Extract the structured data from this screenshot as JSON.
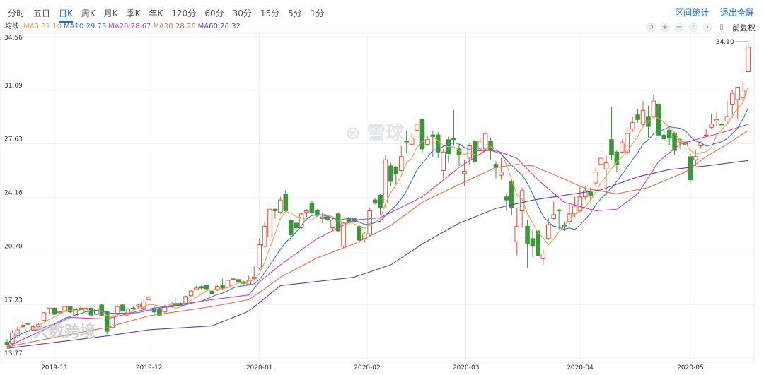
{
  "tabs": [
    {
      "label": "分时"
    },
    {
      "label": "五日"
    },
    {
      "label": "日K",
      "active": true
    },
    {
      "label": "周K"
    },
    {
      "label": "月K"
    },
    {
      "label": "季K"
    },
    {
      "label": "年K"
    },
    {
      "label": "120分"
    },
    {
      "label": "60分"
    },
    {
      "label": "30分"
    },
    {
      "label": "15分"
    },
    {
      "label": "5分"
    },
    {
      "label": "1分"
    }
  ],
  "links": {
    "range_stats": "区间统计",
    "exit_fullscreen": "退出全屏"
  },
  "legend": {
    "title": "均线",
    "items": [
      {
        "label": "MA5:31.10",
        "color": "#f0a04b"
      },
      {
        "label": "MA10:29.73",
        "color": "#3a7bd5"
      },
      {
        "label": "MA20:28.67",
        "color": "#d23fc0"
      },
      {
        "label": "MA30:28.26",
        "color": "#ec6b4a"
      },
      {
        "label": "MA60:26.32",
        "color": "#6a3ea1"
      }
    ]
  },
  "tools": {
    "icons": [
      "undo-icon",
      "zoom-in-icon",
      "zoom-out-icon",
      "chevron-left-icon",
      "chevron-right-icon",
      "candlestick-icon"
    ],
    "adjust_label": "前复权"
  },
  "watermarks": {
    "center": "雪球",
    "bottom_left": "大数跨境"
  },
  "colors": {
    "up": "#e0533f",
    "down": "#3d963d",
    "active_tab": "#1f6fd1"
  },
  "chart_data": {
    "type": "candlestick",
    "ylim": [
      13.77,
      34.56
    ],
    "y_ticks": [
      "34.56",
      "31.09",
      "27.63",
      "24.16",
      "20.70",
      "17.23",
      "13.77"
    ],
    "x_ticks": [
      {
        "label": "2019-11",
        "candle": 9
      },
      {
        "label": "2019-12",
        "candle": 27
      },
      {
        "label": "2020-01",
        "candle": 48
      },
      {
        "label": "2020-02",
        "candle": 68.5
      },
      {
        "label": "2020-03",
        "candle": 87.3
      },
      {
        "label": "2020-04",
        "candle": 109
      },
      {
        "label": "2020-05",
        "candle": 130
      }
    ],
    "max_label": "34.10",
    "ohlc": [
      [
        14.8,
        15.0,
        14.5,
        14.65
      ],
      [
        14.7,
        15.6,
        14.6,
        15.4
      ],
      [
        15.2,
        15.8,
        15.1,
        15.6
      ],
      [
        15.8,
        16.1,
        15.7,
        15.9
      ],
      [
        16.0,
        16.05,
        15.9,
        15.98
      ],
      [
        15.6,
        15.9,
        15.5,
        15.8
      ],
      [
        15.8,
        16.0,
        15.75,
        15.95
      ],
      [
        16.2,
        16.75,
        16.15,
        16.7
      ],
      [
        16.95,
        17.0,
        16.6,
        17.0
      ],
      [
        17.0,
        17.05,
        16.6,
        16.6
      ],
      [
        16.7,
        16.8,
        16.65,
        16.75
      ],
      [
        16.8,
        17.1,
        16.75,
        17.1
      ],
      [
        17.1,
        17.15,
        16.7,
        16.75
      ],
      [
        16.5,
        16.95,
        16.45,
        16.9
      ],
      [
        17.0,
        17.05,
        16.85,
        16.9
      ],
      [
        16.8,
        17.2,
        16.75,
        17.0
      ],
      [
        17.0,
        17.05,
        16.4,
        16.55
      ],
      [
        16.6,
        16.95,
        16.55,
        16.95
      ],
      [
        17.2,
        17.25,
        16.5,
        16.55
      ],
      [
        16.8,
        16.85,
        15.3,
        15.5
      ],
      [
        15.75,
        16.6,
        15.7,
        16.5
      ],
      [
        16.6,
        17.2,
        16.5,
        17.1
      ],
      [
        17.2,
        17.25,
        16.8,
        16.8
      ],
      [
        16.6,
        17.0,
        16.5,
        16.95
      ],
      [
        17.0,
        17.1,
        16.9,
        16.97
      ],
      [
        17.1,
        17.3,
        17.0,
        17.2
      ],
      [
        17.0,
        17.55,
        16.7,
        17.4
      ],
      [
        17.55,
        17.8,
        17.5,
        17.7
      ],
      [
        17.0,
        17.1,
        16.7,
        16.75
      ],
      [
        16.9,
        16.95,
        16.5,
        16.55
      ],
      [
        16.75,
        17.2,
        16.7,
        17.1
      ],
      [
        17.25,
        17.45,
        17.2,
        17.4
      ],
      [
        17.3,
        17.7,
        17.1,
        17.15
      ],
      [
        17.3,
        17.4,
        17.1,
        17.15
      ],
      [
        17.3,
        17.8,
        17.25,
        17.75
      ],
      [
        17.8,
        18.15,
        17.75,
        18.1
      ],
      [
        18.2,
        18.45,
        18.15,
        18.3
      ],
      [
        18.4,
        18.5,
        18.2,
        18.3
      ],
      [
        18.45,
        18.5,
        18.1,
        18.25
      ],
      [
        18.1,
        18.15,
        17.9,
        17.95
      ],
      [
        18.2,
        18.5,
        18.1,
        18.4
      ],
      [
        18.45,
        18.9,
        18.2,
        18.3
      ],
      [
        18.35,
        18.85,
        18.3,
        18.8
      ],
      [
        18.85,
        18.95,
        18.8,
        18.9
      ],
      [
        18.85,
        18.9,
        18.65,
        18.7
      ],
      [
        18.7,
        18.75,
        18.55,
        18.6
      ],
      [
        18.55,
        19.1,
        18.5,
        18.8
      ],
      [
        18.9,
        19.7,
        18.85,
        19.0
      ],
      [
        19.6,
        21.5,
        19.5,
        21.1
      ],
      [
        21.0,
        22.6,
        20.9,
        22.3
      ],
      [
        21.6,
        23.6,
        21.5,
        23.4
      ],
      [
        23.4,
        23.45,
        22.8,
        23.3
      ],
      [
        23.2,
        24.2,
        23.1,
        24.0
      ],
      [
        24.4,
        24.6,
        23.3,
        23.3
      ],
      [
        22.7,
        22.8,
        21.3,
        21.75
      ],
      [
        22.5,
        22.6,
        22.0,
        22.2
      ],
      [
        22.2,
        23.2,
        22.15,
        23.1
      ],
      [
        23.2,
        23.4,
        22.9,
        23.3
      ],
      [
        23.8,
        23.95,
        23.1,
        23.2
      ],
      [
        23.3,
        23.4,
        22.9,
        23.0
      ],
      [
        22.8,
        23.2,
        22.5,
        22.9
      ],
      [
        22.9,
        23.0,
        22.6,
        22.7
      ],
      [
        22.2,
        22.8,
        22.0,
        22.7
      ],
      [
        23.1,
        23.2,
        21.9,
        22.0
      ],
      [
        21.0,
        22.6,
        20.9,
        22.5
      ],
      [
        22.8,
        22.9,
        22.5,
        22.6
      ],
      [
        22.8,
        22.85,
        22.55,
        22.6
      ],
      [
        22.3,
        22.35,
        21.2,
        21.4
      ],
      [
        21.5,
        21.9,
        21.3,
        21.8
      ],
      [
        21.8,
        23.5,
        21.7,
        23.3
      ],
      [
        24.0,
        24.1,
        23.7,
        23.8
      ],
      [
        24.3,
        24.4,
        23.0,
        23.5
      ],
      [
        23.8,
        26.9,
        23.5,
        26.6
      ],
      [
        26.2,
        26.4,
        24.9,
        25.2
      ],
      [
        26.1,
        26.2,
        25.0,
        25.7
      ],
      [
        25.9,
        27.5,
        25.8,
        26.8
      ],
      [
        27.8,
        28.5,
        27.0,
        27.75
      ],
      [
        27.6,
        28.3,
        27.5,
        28.0
      ],
      [
        28.5,
        29.3,
        28.3,
        28.9
      ],
      [
        29.2,
        29.3,
        27.0,
        27.3
      ],
      [
        27.6,
        28.1,
        27.5,
        27.9
      ],
      [
        28.2,
        28.5,
        26.8,
        28.1
      ],
      [
        28.2,
        28.4,
        26.7,
        27.1
      ],
      [
        25.9,
        27.3,
        25.4,
        27.1
      ],
      [
        27.9,
        28.1,
        26.4,
        27.0
      ],
      [
        28.0,
        29.8,
        27.5,
        27.9
      ],
      [
        27.3,
        27.6,
        26.2,
        26.9
      ],
      [
        25.7,
        26.6,
        24.9,
        25.85
      ],
      [
        26.7,
        27.7,
        26.3,
        27.5
      ],
      [
        27.8,
        28.0,
        26.3,
        26.5
      ],
      [
        27.3,
        28.0,
        26.8,
        27.8
      ],
      [
        27.3,
        28.4,
        27.2,
        28.3
      ],
      [
        27.8,
        28.0,
        26.6,
        27.2
      ],
      [
        26.3,
        26.5,
        25.4,
        26.1
      ],
      [
        25.6,
        26.7,
        25.3,
        25.8
      ],
      [
        24.2,
        24.4,
        23.3,
        24.0
      ],
      [
        25.2,
        25.3,
        23.0,
        23.5
      ],
      [
        21.3,
        23.5,
        20.4,
        22.3
      ],
      [
        23.3,
        24.8,
        22.2,
        24.6
      ],
      [
        22.3,
        22.7,
        19.6,
        21.2
      ],
      [
        21.5,
        22.1,
        20.3,
        21.0
      ],
      [
        22.0,
        22.0,
        20.4,
        20.4
      ],
      [
        20.2,
        20.8,
        19.8,
        20.5
      ],
      [
        21.5,
        22.8,
        21.4,
        22.4
      ],
      [
        22.8,
        23.9,
        22.7,
        23.05
      ],
      [
        23.35,
        23.4,
        22.1,
        23.3
      ],
      [
        22.35,
        22.6,
        22.0,
        22.3
      ],
      [
        22.6,
        23.7,
        22.4,
        23.1
      ],
      [
        23.1,
        24.2,
        22.9,
        23.6
      ],
      [
        23.3,
        24.9,
        23.2,
        24.2
      ],
      [
        24.2,
        24.9,
        24.0,
        24.6
      ],
      [
        24.5,
        24.8,
        23.9,
        24.3
      ],
      [
        25.1,
        26.1,
        24.9,
        25.8
      ],
      [
        26.3,
        27.2,
        25.9,
        26.7
      ],
      [
        26.0,
        26.9,
        24.3,
        26.4
      ],
      [
        27.9,
        30.0,
        26.6,
        26.9
      ],
      [
        27.1,
        27.2,
        25.8,
        26.3
      ],
      [
        27.1,
        27.9,
        27.0,
        27.7
      ],
      [
        27.1,
        28.7,
        26.9,
        28.3
      ],
      [
        28.6,
        29.4,
        28.4,
        29.0
      ],
      [
        29.5,
        29.9,
        29.0,
        29.2
      ],
      [
        28.9,
        30.4,
        28.7,
        29.8
      ],
      [
        29.4,
        30.1,
        28.0,
        28.75
      ],
      [
        29.4,
        30.8,
        29.3,
        30.4
      ],
      [
        30.2,
        30.4,
        28.2,
        28.2
      ],
      [
        28.2,
        28.5,
        27.8,
        27.95
      ],
      [
        28.5,
        28.6,
        27.5,
        28.0
      ],
      [
        28.3,
        28.4,
        26.9,
        27.2
      ],
      [
        27.75,
        28.0,
        27.3,
        27.9
      ],
      [
        27.75,
        28.2,
        27.2,
        27.6
      ],
      [
        26.8,
        27.0,
        25.1,
        25.3
      ],
      [
        26.6,
        27.2,
        26.2,
        26.8
      ],
      [
        27.5,
        27.8,
        27.3,
        27.7
      ],
      [
        28.2,
        28.6,
        28.1,
        28.2
      ],
      [
        28.7,
        29.6,
        28.6,
        28.9
      ],
      [
        29.1,
        29.7,
        28.8,
        29.2
      ],
      [
        28.9,
        29.3,
        28.3,
        28.85
      ],
      [
        29.1,
        30.4,
        28.9,
        29.4
      ],
      [
        30.2,
        31.1,
        29.3,
        30.9
      ],
      [
        30.5,
        31.3,
        29.2,
        31.3
      ],
      [
        30.6,
        31.7,
        30.4,
        31.1
      ],
      [
        32.3,
        34.1,
        32.2,
        33.9
      ]
    ],
    "ma_lines": [
      {
        "name": "MA5",
        "period": 5,
        "color": "#f0a04b"
      },
      {
        "name": "MA10",
        "period": 10,
        "color": "#3a7bd5"
      },
      {
        "name": "MA20",
        "color": "#d23fc0",
        "knots": [
          [
            0,
            14.5
          ],
          [
            12,
            16.4
          ],
          [
            19,
            16.3
          ],
          [
            26,
            16.9
          ],
          [
            39,
            17.55
          ],
          [
            46,
            17.85
          ],
          [
            48,
            18.7
          ],
          [
            52,
            19.8
          ],
          [
            59,
            21.5
          ],
          [
            66,
            22.7
          ],
          [
            71,
            22.85
          ],
          [
            79,
            24.2
          ],
          [
            86,
            26.1
          ],
          [
            91,
            27.2
          ],
          [
            93,
            27.2
          ],
          [
            97,
            26.7
          ],
          [
            101,
            25.3
          ],
          [
            106,
            23.85
          ],
          [
            112,
            23.3
          ],
          [
            116,
            23.4
          ],
          [
            120,
            24.4
          ],
          [
            124,
            26.5
          ],
          [
            128,
            27.6
          ],
          [
            132,
            28.0
          ],
          [
            136,
            28.35
          ],
          [
            141,
            28.9
          ]
        ]
      },
      {
        "name": "MA30",
        "color": "#ec6b4a",
        "knots": [
          [
            0,
            14.5
          ],
          [
            12,
            15.3
          ],
          [
            19,
            15.75
          ],
          [
            27,
            16.5
          ],
          [
            39,
            17.1
          ],
          [
            46,
            17.55
          ],
          [
            48,
            18.0
          ],
          [
            52,
            19.0
          ],
          [
            59,
            20.25
          ],
          [
            66,
            21.15
          ],
          [
            73,
            22.35
          ],
          [
            79,
            23.85
          ],
          [
            86,
            25.0
          ],
          [
            93,
            26.1
          ],
          [
            97,
            26.3
          ],
          [
            100,
            26.2
          ],
          [
            105,
            25.5
          ],
          [
            110,
            24.75
          ],
          [
            116,
            24.4
          ],
          [
            122,
            24.8
          ],
          [
            129,
            25.8
          ],
          [
            133,
            26.8
          ],
          [
            137,
            27.6
          ],
          [
            141,
            28.5
          ]
        ]
      },
      {
        "name": "MA60",
        "color": "#6a3ea1",
        "knots": [
          [
            0,
            14.4
          ],
          [
            19,
            15.2
          ],
          [
            27,
            15.6
          ],
          [
            39,
            15.85
          ],
          [
            46,
            16.8
          ],
          [
            52,
            18.45
          ],
          [
            66,
            19.0
          ],
          [
            73,
            19.8
          ],
          [
            79,
            21.15
          ],
          [
            86,
            22.5
          ],
          [
            93,
            23.45
          ],
          [
            100,
            23.99
          ],
          [
            106,
            24.3
          ],
          [
            113,
            24.65
          ],
          [
            120,
            25.5
          ],
          [
            126,
            25.96
          ],
          [
            133,
            26.2
          ],
          [
            141,
            26.55
          ]
        ]
      }
    ]
  }
}
